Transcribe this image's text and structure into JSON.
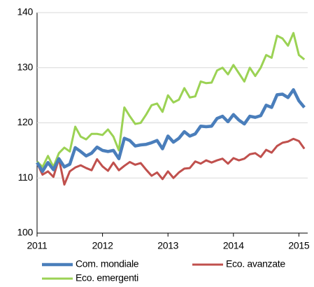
{
  "chart_data": {
    "type": "line",
    "categories": [
      "2011",
      null,
      null,
      null,
      null,
      null,
      null,
      null,
      null,
      null,
      null,
      null,
      "2012",
      null,
      null,
      null,
      null,
      null,
      null,
      null,
      null,
      null,
      null,
      null,
      "2013",
      null,
      null,
      null,
      null,
      null,
      null,
      null,
      null,
      null,
      null,
      null,
      "2014",
      null,
      null,
      null,
      null,
      null,
      null,
      null,
      null,
      null,
      null,
      null,
      "2015",
      null
    ],
    "series": [
      {
        "name": "Com. mondiale",
        "color": "#4a7ebb",
        "values": [
          112.8,
          111.2,
          112.8,
          111.5,
          113.5,
          112,
          112.5,
          115.5,
          114.8,
          114,
          114.5,
          115.6,
          115,
          114.8,
          115,
          113.5,
          117.2,
          116.8,
          115.8,
          116,
          116.1,
          116.4,
          116.8,
          115.3,
          117.6,
          116.5,
          117.2,
          118.4,
          117.6,
          118,
          119.4,
          119.3,
          119.4,
          120.8,
          121.2,
          120.2,
          121.5,
          120.5,
          119.8,
          121.2,
          121,
          121.3,
          123.2,
          122.8,
          125.1,
          125.2,
          124.6,
          126,
          124,
          122.8
        ]
      },
      {
        "name": "Eco. avanzate",
        "color": "#c0504d",
        "values": [
          112.7,
          110.6,
          111.2,
          110.2,
          113.5,
          108.8,
          111.2,
          111.9,
          112.3,
          111.8,
          111.4,
          113.4,
          112.1,
          111.3,
          112.8,
          111.4,
          112.2,
          112.9,
          112.4,
          112.7,
          111.5,
          110.4,
          111,
          109.8,
          111.2,
          110,
          111,
          111.7,
          111.8,
          113,
          112.6,
          113.2,
          112.8,
          113.2,
          113.5,
          112.6,
          113.6,
          113.2,
          113.5,
          114.3,
          114.5,
          113.8,
          115.1,
          114.6,
          115.8,
          116.4,
          116.6,
          117.1,
          116.7,
          115.3
        ]
      },
      {
        "name": "Eco. emergenti",
        "color": "#9bd254",
        "values": [
          113,
          112,
          114,
          112,
          114.5,
          115.5,
          114.8,
          119.3,
          117.5,
          117,
          118,
          118,
          117.8,
          118.8,
          117.5,
          115,
          122.8,
          121.2,
          119.8,
          120,
          121.5,
          123.2,
          123.5,
          122,
          125,
          123.7,
          124.2,
          126.3,
          124.6,
          124.8,
          127.5,
          127.2,
          127.3,
          129.5,
          130,
          128.8,
          130.5,
          129,
          127.5,
          130,
          128.5,
          130,
          132.3,
          131.8,
          135.8,
          135.3,
          134,
          136.3,
          132.3,
          131.5
        ]
      }
    ],
    "ylim": [
      100,
      140
    ],
    "yticks": [
      100,
      110,
      120,
      130,
      140
    ],
    "grid": true
  }
}
